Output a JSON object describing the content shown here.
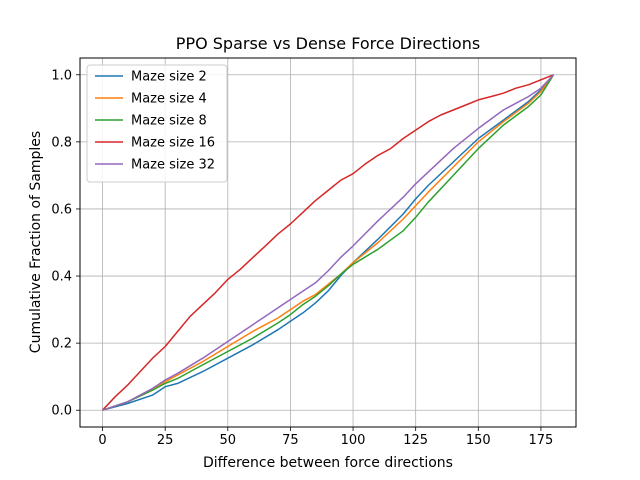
{
  "chart_data": {
    "type": "line",
    "title": "PPO Sparse vs Dense Force Directions",
    "xlabel": "Difference between force directions",
    "ylabel": "Cumulative Fraction of Samples",
    "xlim": [
      -9,
      189
    ],
    "ylim": [
      -0.05,
      1.05
    ],
    "xticks": [
      0,
      25,
      50,
      75,
      100,
      125,
      150,
      175
    ],
    "xtick_labels": [
      "0",
      "25",
      "50",
      "75",
      "100",
      "125",
      "150",
      "175"
    ],
    "yticks": [
      0.0,
      0.2,
      0.4,
      0.6,
      0.8,
      1.0
    ],
    "ytick_labels": [
      "0.0",
      "0.2",
      "0.4",
      "0.6",
      "0.8",
      "1.0"
    ],
    "grid": true,
    "legend_position": "upper-left",
    "series": [
      {
        "name": "Maze size 2",
        "color": "#1f77b4",
        "x": [
          0,
          10,
          20,
          25,
          30,
          40,
          50,
          60,
          70,
          75,
          80,
          85,
          90,
          95,
          100,
          110,
          120,
          125,
          130,
          140,
          150,
          160,
          170,
          175,
          180
        ],
        "y": [
          0,
          0.02,
          0.045,
          0.07,
          0.08,
          0.115,
          0.155,
          0.195,
          0.24,
          0.265,
          0.29,
          0.32,
          0.355,
          0.4,
          0.44,
          0.51,
          0.585,
          0.63,
          0.67,
          0.74,
          0.81,
          0.865,
          0.92,
          0.955,
          1.0
        ]
      },
      {
        "name": "Maze size 4",
        "color": "#ff7f0e",
        "x": [
          0,
          10,
          20,
          25,
          30,
          40,
          50,
          60,
          70,
          75,
          80,
          85,
          90,
          95,
          100,
          110,
          120,
          125,
          130,
          140,
          150,
          160,
          170,
          175,
          180
        ],
        "y": [
          0,
          0.025,
          0.06,
          0.085,
          0.105,
          0.145,
          0.19,
          0.235,
          0.275,
          0.3,
          0.325,
          0.345,
          0.375,
          0.405,
          0.44,
          0.5,
          0.57,
          0.61,
          0.65,
          0.725,
          0.8,
          0.86,
          0.915,
          0.95,
          1.0
        ]
      },
      {
        "name": "Maze size 8",
        "color": "#2ca02c",
        "x": [
          0,
          10,
          20,
          25,
          30,
          40,
          50,
          60,
          70,
          75,
          80,
          85,
          90,
          95,
          100,
          110,
          120,
          125,
          130,
          140,
          150,
          160,
          170,
          175,
          180
        ],
        "y": [
          0,
          0.025,
          0.06,
          0.08,
          0.095,
          0.135,
          0.175,
          0.215,
          0.26,
          0.285,
          0.315,
          0.34,
          0.37,
          0.405,
          0.435,
          0.48,
          0.535,
          0.575,
          0.62,
          0.7,
          0.78,
          0.85,
          0.905,
          0.94,
          1.0
        ]
      },
      {
        "name": "Maze size 16",
        "color": "#d62728",
        "x": [
          0,
          5,
          10,
          15,
          20,
          25,
          30,
          35,
          40,
          45,
          50,
          55,
          60,
          65,
          70,
          75,
          80,
          85,
          90,
          95,
          100,
          105,
          110,
          115,
          120,
          125,
          130,
          135,
          140,
          145,
          150,
          155,
          160,
          165,
          170,
          175,
          180
        ],
        "y": [
          0,
          0.04,
          0.075,
          0.115,
          0.155,
          0.19,
          0.235,
          0.28,
          0.315,
          0.35,
          0.39,
          0.42,
          0.455,
          0.49,
          0.525,
          0.555,
          0.59,
          0.625,
          0.655,
          0.685,
          0.705,
          0.735,
          0.76,
          0.78,
          0.81,
          0.835,
          0.86,
          0.88,
          0.895,
          0.91,
          0.925,
          0.935,
          0.945,
          0.96,
          0.97,
          0.985,
          1.0
        ]
      },
      {
        "name": "Maze size 32",
        "color": "#9467bd",
        "x": [
          0,
          10,
          20,
          25,
          30,
          40,
          50,
          60,
          70,
          75,
          80,
          85,
          90,
          95,
          100,
          110,
          120,
          125,
          130,
          140,
          150,
          160,
          170,
          175,
          180
        ],
        "y": [
          0,
          0.025,
          0.065,
          0.09,
          0.11,
          0.155,
          0.205,
          0.255,
          0.305,
          0.33,
          0.355,
          0.38,
          0.415,
          0.455,
          0.49,
          0.565,
          0.635,
          0.675,
          0.71,
          0.78,
          0.84,
          0.895,
          0.935,
          0.96,
          1.0
        ]
      }
    ]
  }
}
